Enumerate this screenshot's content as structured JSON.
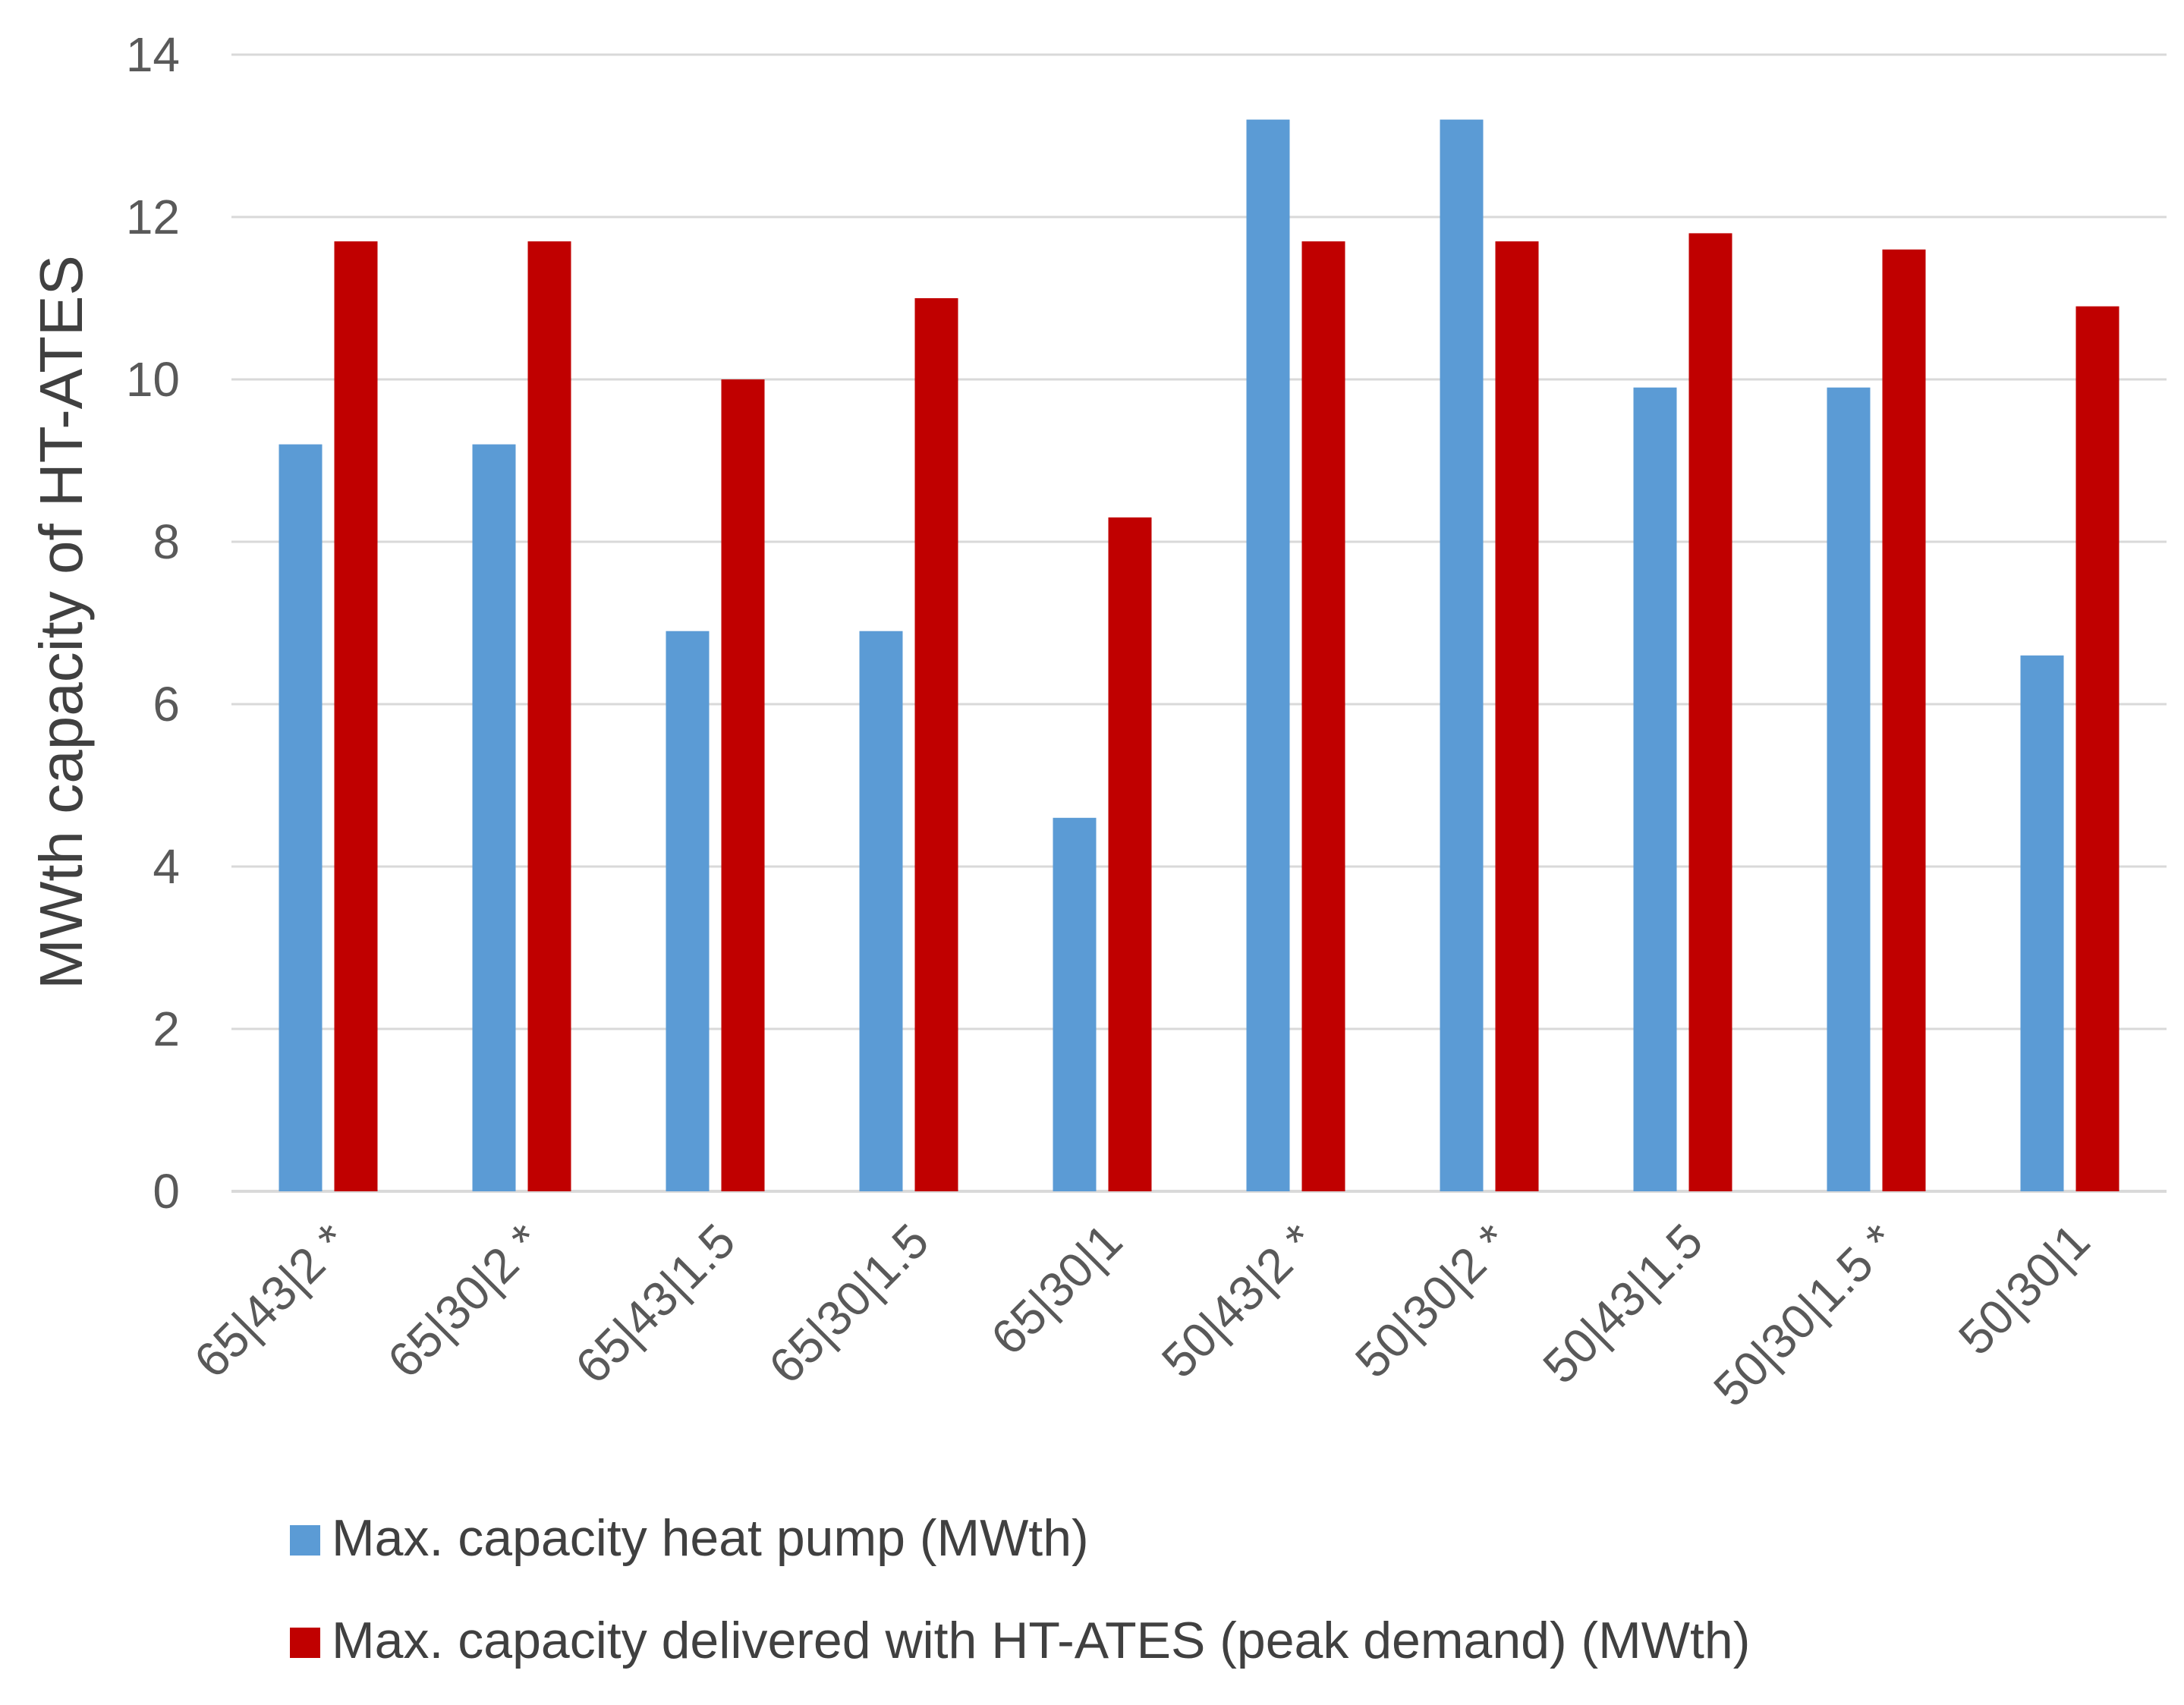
{
  "chart_data": {
    "type": "bar",
    "title": "",
    "xlabel": "",
    "ylabel": "MWth capacity of HT-ATES",
    "ylim": [
      0,
      14
    ],
    "yticks": [
      0,
      2,
      4,
      6,
      8,
      10,
      12,
      14
    ],
    "grid": true,
    "legend_position": "bottom",
    "categories": [
      "65|43|2 *",
      "65|30|2 *",
      "65|43|1.5",
      "65|30|1.5",
      "65|30|1",
      "50|43|2 *",
      "50|30|2 *",
      "50|43|1.5",
      "50|30|1.5 *",
      "50|30|1"
    ],
    "series": [
      {
        "name": "Max. capacity heat pump (MWth)",
        "color": "#5B9BD5",
        "values": [
          9.2,
          9.2,
          6.9,
          6.9,
          4.6,
          13.2,
          13.2,
          9.9,
          9.9,
          6.6
        ]
      },
      {
        "name": "Max. capacity delivered with HT-ATES (peak demand) (MWth)",
        "color": "#C00000",
        "values": [
          11.7,
          11.7,
          10.0,
          11.0,
          8.3,
          11.7,
          11.7,
          11.8,
          11.6,
          10.9
        ]
      }
    ],
    "colors": {
      "gridline": "#D9D9D9",
      "axis_line": "#D9D9D9",
      "text": "#595959"
    }
  }
}
